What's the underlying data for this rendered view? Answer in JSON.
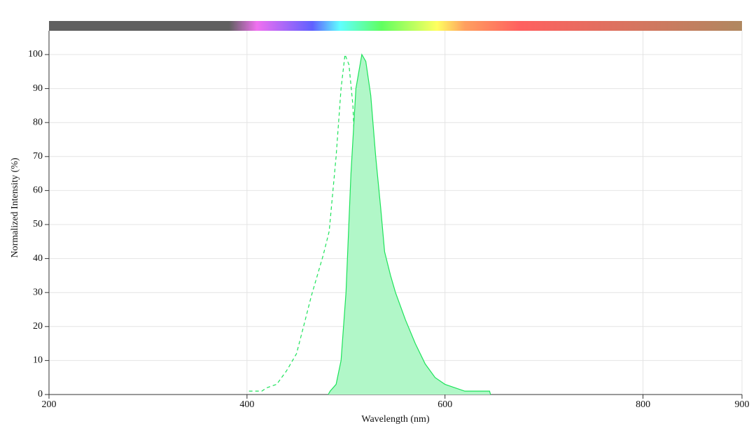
{
  "chart_data": {
    "type": "line",
    "x_label": "Wavelength (nm)",
    "y_label": "Normalized Intensity (%)",
    "xlim": [
      200,
      900
    ],
    "xticks": [
      200,
      400,
      600,
      800,
      900
    ],
    "ylim": [
      0,
      100
    ],
    "yticks": [
      0,
      10,
      20,
      30,
      40,
      50,
      60,
      70,
      80,
      90,
      100
    ],
    "grid": true,
    "series": [
      {
        "color": "#1de35a",
        "style": "dashed",
        "fill": false,
        "x": [
          402,
          415,
          420,
          430,
          440,
          450,
          458,
          465,
          470,
          477,
          483,
          490,
          495,
          499,
          503,
          507,
          511,
          514,
          517,
          521,
          525,
          530,
          536
        ],
        "values": [
          1,
          1,
          2,
          3,
          7,
          12,
          21,
          29,
          34,
          41,
          48,
          70,
          90,
          100,
          97,
          85,
          54,
          38,
          23,
          11,
          5,
          2,
          1
        ]
      },
      {
        "color": "#1de35a",
        "style": "solid",
        "fill": true,
        "fill_color": "#b1f7c8",
        "x": [
          482,
          484,
          490,
          495,
          500,
          505,
          510,
          516,
          520,
          525,
          530,
          535,
          539,
          545,
          550,
          560,
          570,
          580,
          590,
          600,
          610,
          620,
          645,
          646
        ],
        "values": [
          0,
          1,
          3,
          10,
          30,
          65,
          90,
          100,
          98,
          88,
          70,
          55,
          42,
          35,
          30,
          22,
          15,
          9,
          5,
          3,
          2,
          1,
          1,
          0
        ]
      }
    ]
  }
}
